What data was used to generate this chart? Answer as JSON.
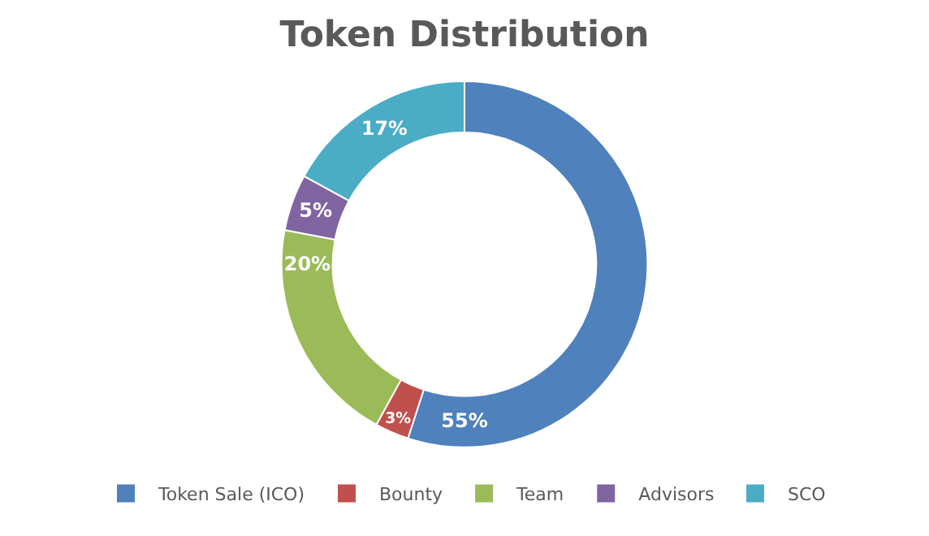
{
  "chart_data": {
    "type": "donut",
    "title": "Token Distribution",
    "categories": [
      "Token Sale (ICO)",
      "Bounty",
      "Team",
      "Advisors",
      "SCO"
    ],
    "values": [
      55,
      3,
      20,
      5,
      17
    ],
    "value_labels": [
      "55%",
      "3%",
      "20%",
      "5%",
      "17%"
    ],
    "colors": [
      "#4f81bd",
      "#c0504d",
      "#9bbb59",
      "#8064a2",
      "#4bacc6"
    ],
    "legend": "bottom"
  }
}
